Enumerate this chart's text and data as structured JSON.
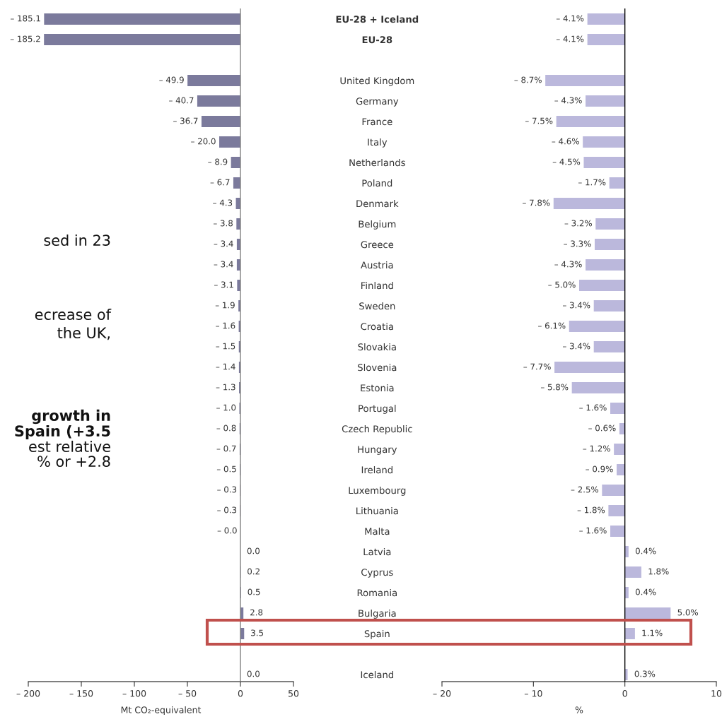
{
  "chart_data": [
    {
      "type": "bar",
      "orientation": "horizontal",
      "xlabel": "Mt CO₂-equivalent",
      "tick_labels": "x",
      "grid": false,
      "categories": [
        null,
        null,
        null,
        null,
        null,
        null,
        null,
        null,
        null,
        null,
        null,
        null,
        null,
        null,
        null,
        null,
        null,
        null,
        null,
        null,
        null,
        null,
        null,
        null,
        null,
        null,
        null,
        null,
        null,
        null,
        null,
        null,
        null
      ],
      "values": [
        -185.1,
        -185.2,
        null,
        -49.9,
        -40.7,
        -36.7,
        -20.0,
        -8.9,
        -6.7,
        -4.3,
        -3.8,
        -3.4,
        -3.4,
        -3.1,
        -1.9,
        -1.6,
        -1.5,
        -1.4,
        -1.3,
        -1.0,
        -0.8,
        -0.7,
        -0.5,
        -0.3,
        -0.3,
        0.0,
        0.0,
        0.2,
        0.5,
        2.8,
        3.5,
        null,
        0.0
      ],
      "value_labels": [
        "– 185.1",
        "– 185.2",
        null,
        "– 49.9",
        "– 40.7",
        "– 36.7",
        "– 20.0",
        "– 8.9",
        "– 6.7",
        "– 4.3",
        "– 3.8",
        "– 3.4",
        "– 3.4",
        "– 3.1",
        "– 1.9",
        "– 1.6",
        "– 1.5",
        "– 1.4",
        "– 1.3",
        "– 1.0",
        "– 0.8",
        "– 0.7",
        "– 0.5",
        "– 0.3",
        "– 0.3",
        "– 0.0",
        "0.0",
        "0.2",
        "0.5",
        "2.8",
        "3.5",
        null,
        "0.0"
      ],
      "color": "#7b7a9c",
      "xlim": [
        -200,
        50
      ],
      "xticks": [
        {
          "value": -200,
          "label": "– 200"
        },
        {
          "value": -150,
          "label": "– 150"
        },
        {
          "value": -100,
          "label": "– 100"
        },
        {
          "value": -50,
          "label": "– 50"
        },
        0,
        50
      ],
      "ref_lines": [
        {
          "axis": "x",
          "value": 0,
          "color": "#808080"
        }
      ],
      "annotations": [
        "sed in 23",
        "ecrease of",
        "the UK,",
        "growth in",
        "Spain (+3.5",
        "est relative",
        "% or +2.8"
      ]
    },
    {
      "type": "bar",
      "orientation": "horizontal",
      "xlabel": "%",
      "grid": false,
      "categories": [
        "EU-28 + Iceland",
        "EU-28",
        null,
        "United Kingdom",
        "Germany",
        "France",
        "Italy",
        "Netherlands",
        "Poland",
        "Denmark",
        "Belgium",
        "Greece",
        "Austria",
        "Finland",
        "Sweden",
        "Croatia",
        "Slovakia",
        "Slovenia",
        "Estonia",
        "Portugal",
        "Czech Republic",
        "Hungary",
        "Ireland",
        "Luxembourg",
        "Lithuania",
        "Malta",
        "Latvia",
        "Cyprus",
        "Romania",
        "Bulgaria",
        "Spain",
        null,
        "Iceland"
      ],
      "values": [
        -4.1,
        -4.1,
        null,
        -8.7,
        -4.3,
        -7.5,
        -4.6,
        -4.5,
        -1.7,
        -7.8,
        -3.2,
        -3.3,
        -4.3,
        -5.0,
        -3.4,
        -6.1,
        -3.4,
        -7.7,
        -5.8,
        -1.6,
        -0.6,
        -1.2,
        -0.9,
        -2.5,
        -1.8,
        -1.6,
        0.4,
        1.8,
        0.4,
        5.0,
        1.1,
        null,
        0.3
      ],
      "value_labels": [
        "– 4.1%",
        "– 4.1%",
        null,
        "– 8.7%",
        "– 4.3%",
        "– 7.5%",
        "– 4.6%",
        "– 4.5%",
        "– 1.7%",
        "– 7.8%",
        "– 3.2%",
        "– 3.3%",
        "– 4.3%",
        "– 5.0%",
        "– 3.4%",
        "– 6.1%",
        "– 3.4%",
        "– 7.7%",
        "– 5.8%",
        "– 1.6%",
        "– 0.6%",
        "– 1.2%",
        "– 0.9%",
        "– 2.5%",
        "– 1.8%",
        "– 1.6%",
        "0.4%",
        "1.8%",
        "0.4%",
        "5.0%",
        "1.1%",
        null,
        "0.3%"
      ],
      "color": "#bbb8dc",
      "xlim": [
        -20,
        10
      ],
      "xticks": [
        {
          "value": -20,
          "label": "– 20"
        },
        {
          "value": -10,
          "label": "– 10"
        },
        0,
        10
      ],
      "ref_lines": [
        {
          "axis": "x",
          "value": 0,
          "color": "#000000"
        }
      ]
    }
  ]
}
